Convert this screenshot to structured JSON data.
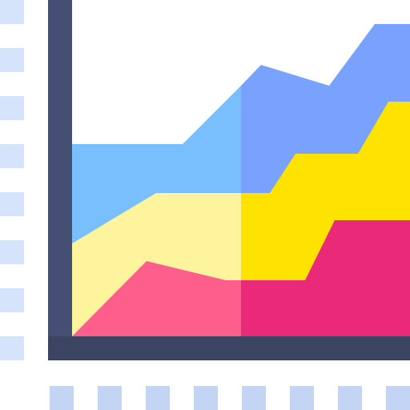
{
  "icon": {
    "name": "stacked-area-chart-icon",
    "colors": {
      "background": "#ffffff",
      "axis_dark": "#3b4463",
      "axis_shade": "#444f73",
      "tick_marks_left": "#d6e4fb",
      "tick_marks_bottom": "#c4d4f5",
      "layer_top_left": "#79bffd",
      "layer_top_right": "#78a2fd",
      "layer_mid_left": "#fdf49d",
      "layer_mid_right": "#fee200",
      "layer_bottom_left": "#fe5e8b",
      "layer_bottom_right": "#ea2a78"
    }
  }
}
